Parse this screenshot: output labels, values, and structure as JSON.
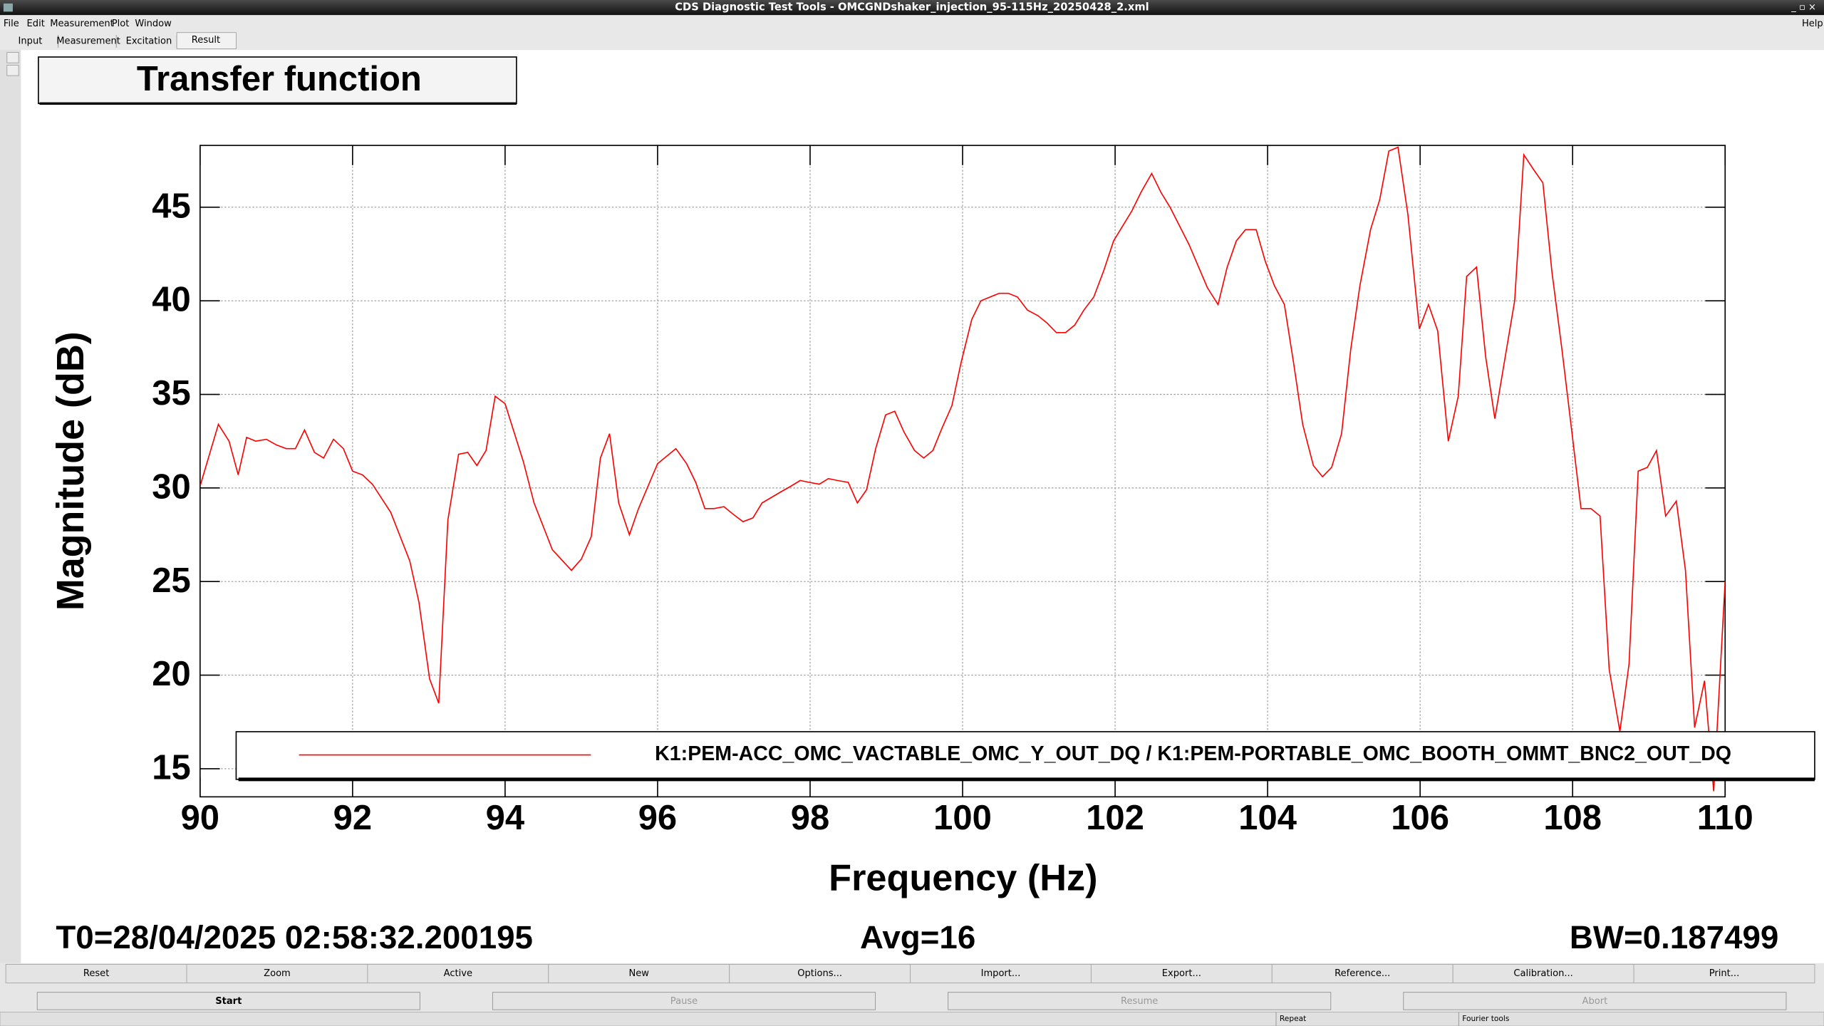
{
  "window": {
    "title": "CDS Diagnostic Test Tools - OMCGNDshaker_injection_95-115Hz_20250428_2.xml",
    "menu": [
      "File",
      "Edit",
      "Measurement",
      "Plot",
      "Window"
    ],
    "help": "Help",
    "tabs": [
      "Input",
      "Measurement",
      "Excitation",
      "Result"
    ]
  },
  "chart_data": {
    "type": "line",
    "title": "Transfer function",
    "x_label": "Frequency (Hz)",
    "y_label": "Magnitude (dB)",
    "x": [
      90,
      90.24,
      90.38,
      90.5,
      90.61,
      90.73,
      90.87,
      91.0,
      91.13,
      91.25,
      91.37,
      91.5,
      91.62,
      91.75,
      91.88,
      92.0,
      92.13,
      92.26,
      92.5,
      92.75,
      92.87,
      93.01,
      93.13,
      93.25,
      93.39,
      93.51,
      93.63,
      93.75,
      93.87,
      94.0,
      94.24,
      94.38,
      94.62,
      94.87,
      95.0,
      95.13,
      95.25,
      95.37,
      95.49,
      95.63,
      95.75,
      96.0,
      96.24,
      96.38,
      96.5,
      96.62,
      96.74,
      96.87,
      96.99,
      97.12,
      97.25,
      97.37,
      97.62,
      97.75,
      97.87,
      97.99,
      98.12,
      98.24,
      98.36,
      98.5,
      98.62,
      98.74,
      98.86,
      98.99,
      99.11,
      99.23,
      99.37,
      99.49,
      99.61,
      99.73,
      99.86,
      99.98,
      100.12,
      100.24,
      100.36,
      100.48,
      100.6,
      100.72,
      100.85,
      100.99,
      101.11,
      101.23,
      101.35,
      101.47,
      101.59,
      101.72,
      101.85,
      101.98,
      102.1,
      102.22,
      102.34,
      102.48,
      102.6,
      102.72,
      102.97,
      103.21,
      103.35,
      103.47,
      103.59,
      103.71,
      103.85,
      103.97,
      104.09,
      104.22,
      104.34,
      104.46,
      104.6,
      104.72,
      104.84,
      104.97,
      105.09,
      105.21,
      105.35,
      105.47,
      105.59,
      105.71,
      105.84,
      105.99,
      106.11,
      106.23,
      106.37,
      106.5,
      106.61,
      106.74,
      106.86,
      106.98,
      107.12,
      107.24,
      107.36,
      107.49,
      107.61,
      107.73,
      107.86,
      107.99,
      108.11,
      108.24,
      108.36,
      108.48,
      108.62,
      108.74,
      108.86,
      108.98,
      109.1,
      109.22,
      109.36,
      109.48,
      109.6,
      109.73,
      109.85,
      110
    ],
    "series": [
      {
        "name": "K1:PEM-ACC_OMC_VACTABLE_OMC_Y_OUT_DQ / K1:PEM-PORTABLE_OMC_BOOTH_OMMT_BNC2_OUT_DQ",
        "color": "#ff0000",
        "values": [
          30.1,
          33.4,
          32.5,
          30.7,
          32.7,
          32.5,
          32.6,
          32.3,
          32.1,
          32.1,
          33.1,
          31.9,
          31.6,
          32.6,
          32.1,
          30.9,
          30.7,
          30.2,
          28.7,
          26.1,
          23.9,
          19.8,
          18.5,
          28.3,
          31.8,
          31.9,
          31.2,
          32.0,
          34.9,
          34.5,
          31.4,
          29.2,
          26.7,
          25.6,
          26.2,
          27.4,
          31.6,
          32.9,
          29.2,
          27.5,
          28.9,
          31.3,
          32.1,
          31.3,
          30.3,
          28.9,
          28.9,
          29.0,
          28.6,
          28.2,
          28.4,
          29.2,
          29.8,
          30.1,
          30.4,
          30.3,
          30.2,
          30.5,
          30.4,
          30.3,
          29.2,
          29.9,
          32.1,
          33.9,
          34.1,
          33.0,
          32.0,
          31.6,
          32.0,
          33.2,
          34.4,
          36.7,
          39.0,
          40.0,
          40.2,
          40.4,
          40.4,
          40.2,
          39.5,
          39.2,
          38.8,
          38.3,
          38.3,
          38.7,
          39.5,
          40.2,
          41.6,
          43.2,
          44.0,
          44.8,
          45.8,
          46.8,
          45.8,
          45.0,
          43.0,
          40.7,
          39.8,
          41.8,
          43.2,
          43.8,
          43.8,
          42.1,
          40.8,
          39.8,
          36.7,
          33.4,
          31.2,
          30.6,
          31.1,
          32.9,
          37.4,
          40.8,
          43.8,
          45.4,
          48.0,
          48.2,
          44.6,
          38.5,
          39.8,
          38.4,
          32.5,
          34.9,
          41.3,
          41.8,
          37.0,
          33.7,
          37.1,
          40.0,
          47.8,
          47.0,
          46.3,
          41.5,
          37.4,
          33.0,
          28.9,
          28.9,
          28.5,
          20.3,
          17.0,
          20.6,
          30.9,
          31.1,
          32.0,
          28.5,
          29.3,
          25.6,
          17.2,
          19.7,
          13.8,
          25.0
        ]
      }
    ],
    "xlim": [
      90,
      110
    ],
    "ylim": [
      13.5,
      48.3
    ],
    "xticks": [
      90,
      92,
      94,
      96,
      98,
      100,
      102,
      104,
      106,
      108,
      110
    ],
    "yticks": [
      15,
      20,
      25,
      30,
      35,
      40,
      45
    ],
    "grid": true
  },
  "info": {
    "t0": "T0=28/04/2025 02:58:32.200195",
    "avg": "Avg=16",
    "bw": "BW=0.187499"
  },
  "buttons": [
    "Reset",
    "Zoom",
    "Active",
    "New",
    "Options...",
    "Import...",
    "Export...",
    "Reference...",
    "Calibration...",
    "Print..."
  ],
  "controls": [
    "Start",
    "Pause",
    "Resume",
    "Abort"
  ],
  "status": [
    "Repeat",
    "Fourier tools"
  ]
}
